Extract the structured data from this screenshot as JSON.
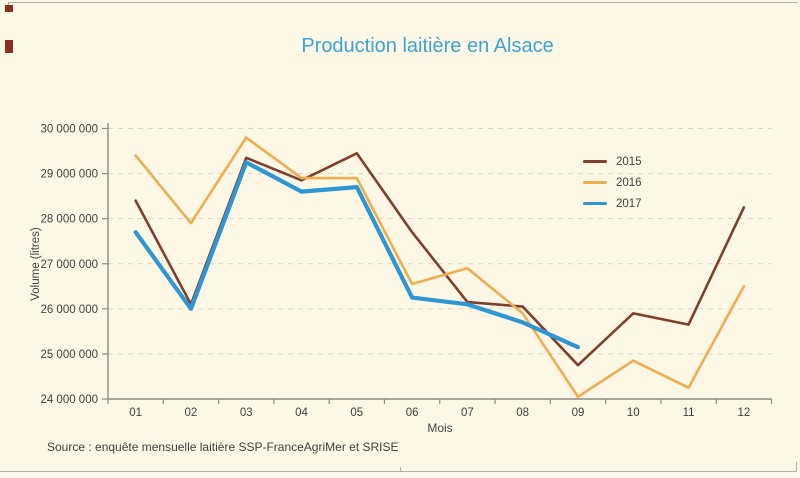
{
  "source": "Source : enquête mensuelle laitière SSP-FranceAgriMer et SRISE",
  "colors": {
    "background": "#fdf8e6",
    "title": "#3ba2d6",
    "text": "#3f3f3f",
    "axis": "#8f8a7e",
    "grid": "#ddd3bf",
    "frame": "#b3afa5",
    "corner_red": "#8f2e22",
    "series_2015": "#823e2c",
    "series_2016": "#eeae4f",
    "series_2017": "#2e96d2"
  },
  "chart_data": {
    "type": "line",
    "title": "Production laitière en Alsace",
    "xlabel": "Mois",
    "ylabel": "Volume (litres)",
    "categories": [
      "01",
      "02",
      "03",
      "04",
      "05",
      "06",
      "07",
      "08",
      "09",
      "10",
      "11",
      "12"
    ],
    "ylim": [
      24000000,
      30000000
    ],
    "ytick_step": 1000000,
    "ytick_labels": [
      "24 000 000",
      "25 000 000",
      "26 000 000",
      "27 000 000",
      "28 000 000",
      "29 000 000",
      "30 000 000"
    ],
    "grid": "horizontal-dashed",
    "legend_position": "inside-upper-right",
    "series": [
      {
        "name": "2015",
        "color": "#823e2c",
        "stroke_width": 2.6,
        "values": [
          28400000,
          26100000,
          29350000,
          28850000,
          29450000,
          27700000,
          26150000,
          26050000,
          24750000,
          25900000,
          25650000,
          28250000
        ]
      },
      {
        "name": "2016",
        "color": "#eeae4f",
        "stroke_width": 2.6,
        "values": [
          29400000,
          27900000,
          29800000,
          28900000,
          28900000,
          26550000,
          26900000,
          25900000,
          24050000,
          24850000,
          24250000,
          26500000
        ]
      },
      {
        "name": "2017",
        "color": "#2e96d2",
        "stroke_width": 4.2,
        "values": [
          27700000,
          26000000,
          29250000,
          28600000,
          28700000,
          26250000,
          26100000,
          25700000,
          25150000,
          null,
          null,
          null
        ]
      }
    ]
  }
}
